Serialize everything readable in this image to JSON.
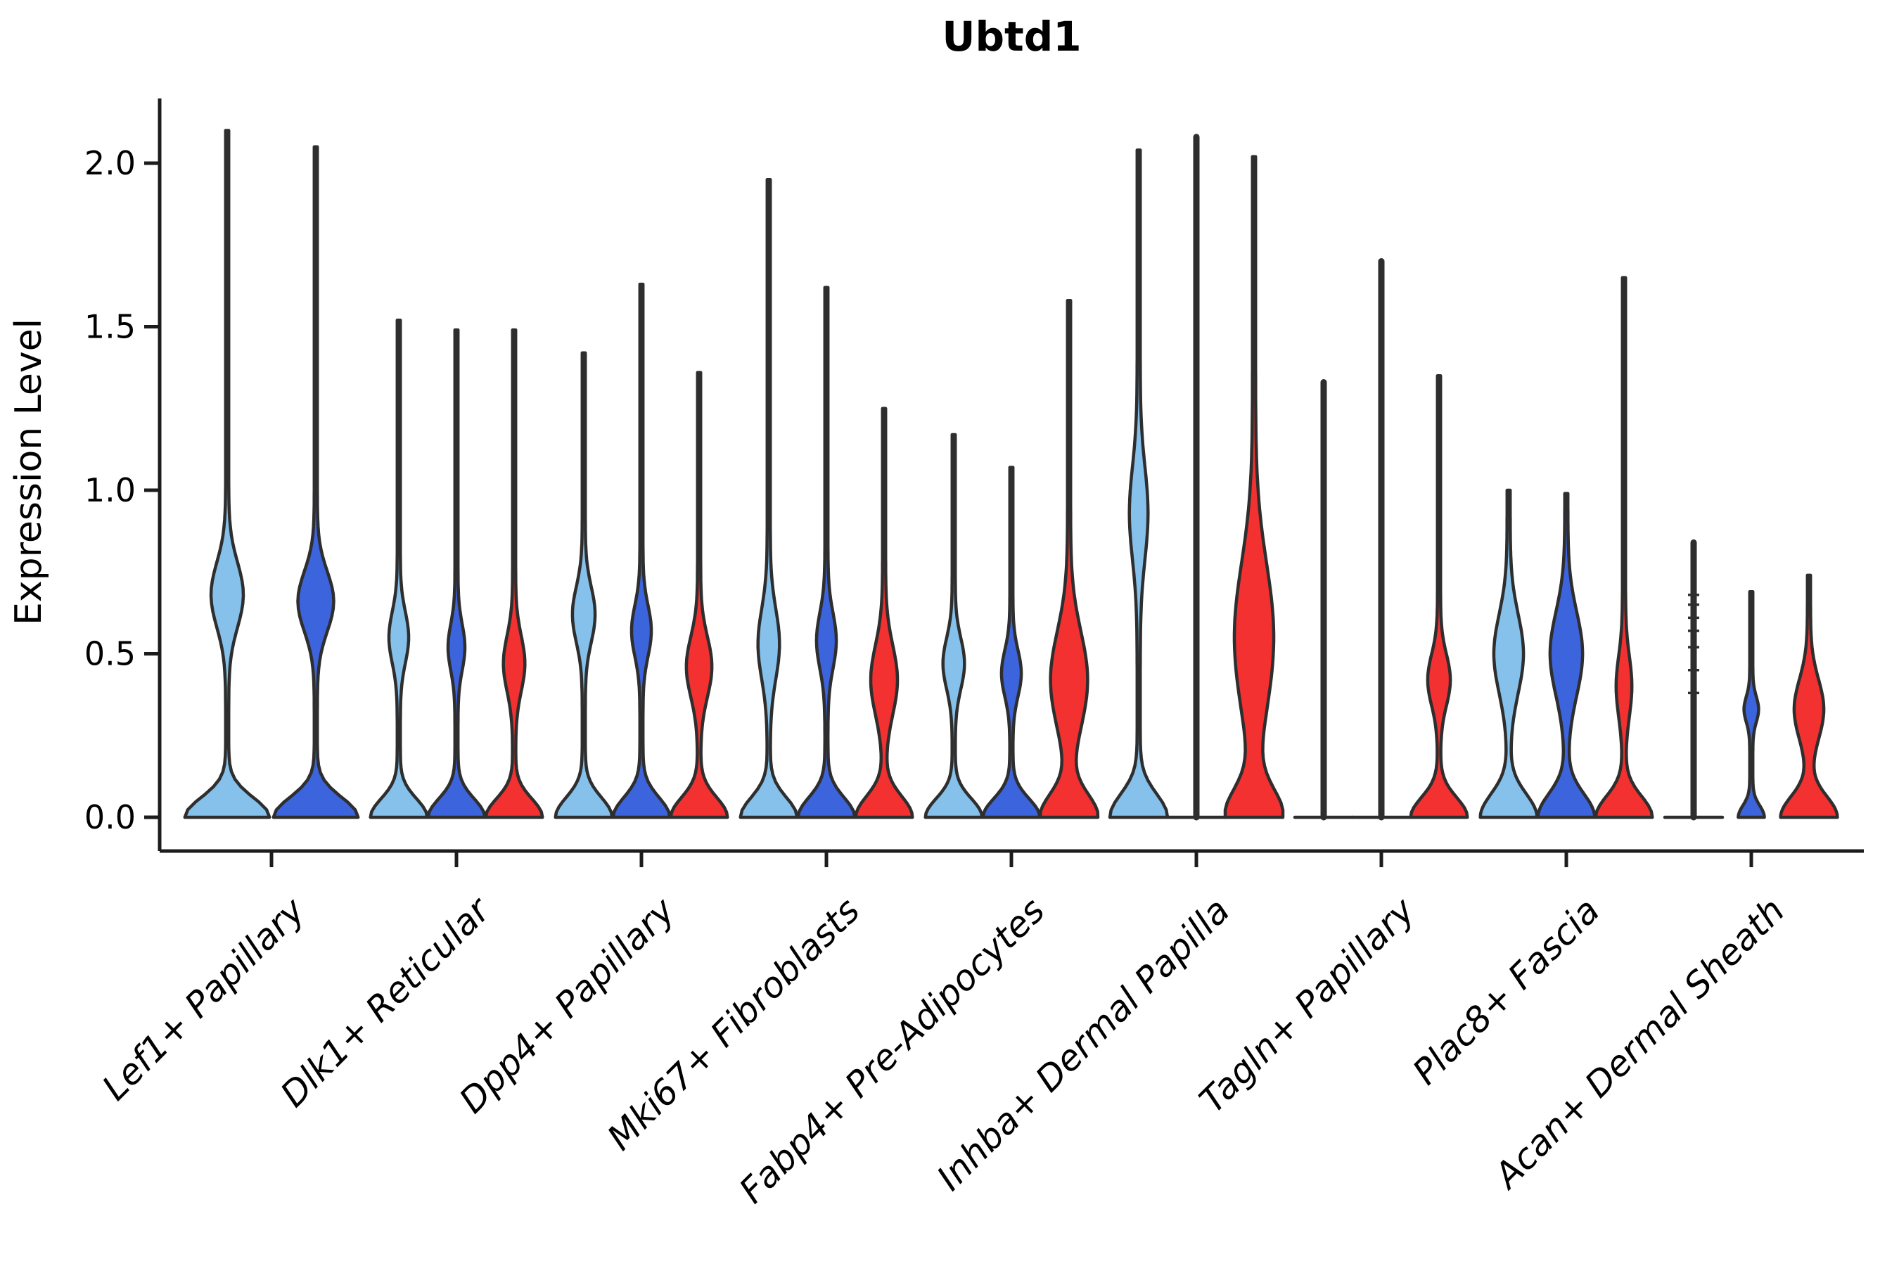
{
  "title": "Ubtd1",
  "axes": {
    "y": {
      "label": "Expression Level",
      "tick_labels": [
        "0.0",
        "0.5",
        "1.0",
        "1.5",
        "2.0"
      ],
      "tick_values": [
        0.0,
        0.5,
        1.0,
        1.5,
        2.0
      ]
    },
    "x": {
      "categories": [
        "Lef1+ Papillary",
        "Dlk1+ Reticular",
        "Dpp4+ Papillary",
        "Mki67+ Fibroblasts",
        "Fabp4+ Pre-Adipocytes",
        "Inhba+ Dermal Papilla",
        "Tagln+ Papillary",
        "Plac8+ Fascia",
        "Acan+ Dermal Sheath"
      ]
    }
  },
  "palette": {
    "light_blue": "#85C1EA",
    "royal_blue": "#3C64DC",
    "red": "#F23130",
    "outline": "#2E2E2E",
    "axis": "#1C1C1C",
    "text": "#000000"
  },
  "chart_data": {
    "type": "violin",
    "title": "Ubtd1",
    "xlabel": "",
    "ylabel": "Expression Level",
    "ylim": [
      -0.1,
      2.3
    ],
    "yticks": [
      0.0,
      0.5,
      1.0,
      1.5,
      2.0
    ],
    "grid": false,
    "legend": "none",
    "categories": [
      "Lef1+ Papillary",
      "Dlk1+ Reticular",
      "Dpp4+ Papillary",
      "Mki67+ Fibroblasts",
      "Fabp4+ Pre-Adipocytes",
      "Inhba+ Dermal Papilla",
      "Tagln+ Papillary",
      "Plac8+ Fascia",
      "Acan+ Dermal Sheath"
    ],
    "splits": [
      {
        "name": "light-blue",
        "color": "#85C1EA"
      },
      {
        "name": "royal-blue",
        "color": "#3C64DC"
      },
      {
        "name": "red",
        "color": "#F23130"
      }
    ],
    "violins": [
      {
        "category": 0,
        "split": 0,
        "kind": "violin",
        "max": 2.1,
        "base": {
          "w": 0.92,
          "s": 0.085
        },
        "bulge": {
          "c": 0.68,
          "w": 0.33,
          "s": 0.14
        }
      },
      {
        "category": 0,
        "split": 1,
        "kind": "violin",
        "max": 2.05,
        "base": {
          "w": 0.92,
          "s": 0.085
        },
        "bulge": {
          "c": 0.66,
          "w": 0.37,
          "s": 0.13
        }
      },
      {
        "category": 1,
        "split": 0,
        "kind": "violin",
        "max": 1.52,
        "base": {
          "w": 0.93,
          "s": 0.08
        },
        "bulge": {
          "c": 0.55,
          "w": 0.29,
          "s": 0.11
        }
      },
      {
        "category": 1,
        "split": 1,
        "kind": "violin",
        "max": 1.49,
        "base": {
          "w": 0.93,
          "s": 0.08
        },
        "bulge": {
          "c": 0.52,
          "w": 0.24,
          "s": 0.1
        }
      },
      {
        "category": 1,
        "split": 2,
        "kind": "violin",
        "max": 1.49,
        "base": {
          "w": 0.93,
          "s": 0.08
        },
        "bulge": {
          "c": 0.47,
          "w": 0.32,
          "s": 0.12
        }
      },
      {
        "category": 2,
        "split": 0,
        "kind": "violin",
        "max": 1.42,
        "base": {
          "w": 0.93,
          "s": 0.085
        },
        "bulge": {
          "c": 0.62,
          "w": 0.34,
          "s": 0.12
        }
      },
      {
        "category": 2,
        "split": 1,
        "kind": "violin",
        "max": 1.63,
        "base": {
          "w": 0.93,
          "s": 0.085
        },
        "bulge": {
          "c": 0.57,
          "w": 0.29,
          "s": 0.11
        }
      },
      {
        "category": 2,
        "split": 2,
        "kind": "violin",
        "max": 1.36,
        "base": {
          "w": 0.93,
          "s": 0.085
        },
        "bulge": {
          "c": 0.46,
          "w": 0.39,
          "s": 0.13
        }
      },
      {
        "category": 3,
        "split": 0,
        "kind": "violin",
        "max": 1.95,
        "base": {
          "w": 0.93,
          "s": 0.085
        },
        "bulge": {
          "c": 0.53,
          "w": 0.32,
          "s": 0.15
        }
      },
      {
        "category": 3,
        "split": 1,
        "kind": "violin",
        "max": 1.62,
        "base": {
          "w": 0.93,
          "s": 0.085
        },
        "bulge": {
          "c": 0.54,
          "w": 0.29,
          "s": 0.12
        }
      },
      {
        "category": 3,
        "split": 2,
        "kind": "violin",
        "max": 1.25,
        "base": {
          "w": 0.93,
          "s": 0.09
        },
        "bulge": {
          "c": 0.42,
          "w": 0.41,
          "s": 0.15
        }
      },
      {
        "category": 4,
        "split": 0,
        "kind": "violin",
        "max": 1.17,
        "base": {
          "w": 0.93,
          "s": 0.08
        },
        "bulge": {
          "c": 0.47,
          "w": 0.32,
          "s": 0.11
        }
      },
      {
        "category": 4,
        "split": 1,
        "kind": "violin",
        "max": 1.07,
        "base": {
          "w": 0.93,
          "s": 0.08
        },
        "bulge": {
          "c": 0.44,
          "w": 0.29,
          "s": 0.1
        }
      },
      {
        "category": 4,
        "split": 2,
        "kind": "violin",
        "max": 1.58,
        "base": {
          "w": 0.95,
          "s": 0.1
        },
        "bulge": {
          "c": 0.42,
          "w": 0.59,
          "s": 0.21
        }
      },
      {
        "category": 5,
        "split": 0,
        "kind": "violin",
        "max": 2.04,
        "base": {
          "w": 0.95,
          "s": 0.1
        },
        "bulge": {
          "c": 0.93,
          "w": 0.27,
          "s": 0.2
        }
      },
      {
        "category": 5,
        "split": 1,
        "kind": "line",
        "max": 2.08,
        "base": null,
        "bulge": null
      },
      {
        "category": 5,
        "split": 2,
        "kind": "violin",
        "max": 2.02,
        "base": {
          "w": 0.95,
          "s": 0.12
        },
        "bulge": {
          "c": 0.55,
          "w": 0.63,
          "s": 0.32
        }
      },
      {
        "category": 6,
        "split": 0,
        "kind": "line",
        "max": 1.33,
        "base": null,
        "bulge": null
      },
      {
        "category": 6,
        "split": 1,
        "kind": "line",
        "max": 1.7,
        "base": null,
        "bulge": null
      },
      {
        "category": 6,
        "split": 2,
        "kind": "violin",
        "max": 1.35,
        "base": {
          "w": 0.93,
          "s": 0.085
        },
        "bulge": {
          "c": 0.42,
          "w": 0.34,
          "s": 0.11
        }
      },
      {
        "category": 7,
        "split": 0,
        "kind": "violin",
        "max": 1.0,
        "base": {
          "w": 0.93,
          "s": 0.1
        },
        "bulge": {
          "c": 0.5,
          "w": 0.46,
          "s": 0.17
        }
      },
      {
        "category": 7,
        "split": 1,
        "kind": "violin",
        "max": 0.99,
        "base": {
          "w": 0.93,
          "s": 0.1
        },
        "bulge": {
          "c": 0.5,
          "w": 0.51,
          "s": 0.18
        }
      },
      {
        "category": 7,
        "split": 2,
        "kind": "violin",
        "max": 1.65,
        "base": {
          "w": 0.93,
          "s": 0.09
        },
        "bulge": {
          "c": 0.4,
          "w": 0.22,
          "s": 0.13
        }
      },
      {
        "category": 8,
        "split": 0,
        "kind": "line",
        "max": 0.84,
        "base": null,
        "bulge": null,
        "rug": [
          0.38,
          0.45,
          0.52,
          0.57,
          0.61,
          0.65,
          0.68
        ]
      },
      {
        "category": 8,
        "split": 1,
        "kind": "violin",
        "max": 0.69,
        "base": {
          "w": 0.4,
          "s": 0.05
        },
        "bulge": {
          "c": 0.33,
          "w": 0.2,
          "s": 0.055
        }
      },
      {
        "category": 8,
        "split": 2,
        "kind": "violin",
        "max": 0.74,
        "base": {
          "w": 0.93,
          "s": 0.09
        },
        "bulge": {
          "c": 0.33,
          "w": 0.46,
          "s": 0.13
        }
      }
    ]
  }
}
